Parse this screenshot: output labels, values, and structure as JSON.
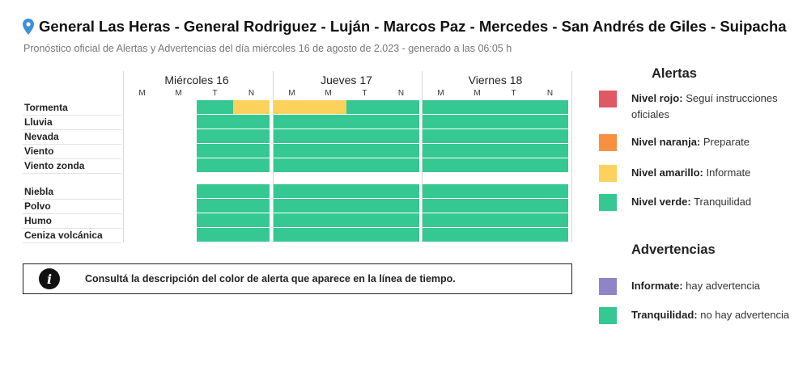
{
  "header": {
    "title": "General Las Heras - General Rodriguez - Luján - Marcos Paz - Mercedes - San Andrés de Giles - Suipacha",
    "subtitle": "Pronóstico oficial de Alertas y Advertencias del día miércoles 16 de agosto de 2.023 - generado a las 06:05 h"
  },
  "colors": {
    "verde": "#36c892",
    "amarillo": "#fcd25c",
    "naranja": "#f59140",
    "rojo": "#e15865",
    "violeta": "#8c86c6",
    "empty": "#ffffff"
  },
  "days": [
    {
      "label": "Miércoles 16",
      "periods": [
        "M",
        "M",
        "T",
        "N"
      ]
    },
    {
      "label": "Jueves 17",
      "periods": [
        "M",
        "M",
        "T",
        "N"
      ]
    },
    {
      "label": "Viernes 18",
      "periods": [
        "M",
        "M",
        "T",
        "N"
      ]
    }
  ],
  "rows": [
    {
      "label": "Tormenta",
      "levels": [
        "none",
        "none",
        "verde",
        "amarillo",
        "amarillo",
        "amarillo",
        "verde",
        "verde",
        "verde",
        "verde",
        "verde",
        "verde"
      ]
    },
    {
      "label": "Lluvia",
      "levels": [
        "none",
        "none",
        "verde",
        "verde",
        "verde",
        "verde",
        "verde",
        "verde",
        "verde",
        "verde",
        "verde",
        "verde"
      ]
    },
    {
      "label": "Nevada",
      "levels": [
        "none",
        "none",
        "verde",
        "verde",
        "verde",
        "verde",
        "verde",
        "verde",
        "verde",
        "verde",
        "verde",
        "verde"
      ]
    },
    {
      "label": "Viento",
      "levels": [
        "none",
        "none",
        "verde",
        "verde",
        "verde",
        "verde",
        "verde",
        "verde",
        "verde",
        "verde",
        "verde",
        "verde"
      ]
    },
    {
      "label": "Viento zonda",
      "levels": [
        "none",
        "none",
        "verde",
        "verde",
        "verde",
        "verde",
        "verde",
        "verde",
        "verde",
        "verde",
        "verde",
        "verde"
      ]
    },
    {
      "label": "Niebla",
      "levels": [
        "none",
        "none",
        "verde",
        "verde",
        "verde",
        "verde",
        "verde",
        "verde",
        "verde",
        "verde",
        "verde",
        "verde"
      ]
    },
    {
      "label": "Polvo",
      "levels": [
        "none",
        "none",
        "verde",
        "verde",
        "verde",
        "verde",
        "verde",
        "verde",
        "verde",
        "verde",
        "verde",
        "verde"
      ]
    },
    {
      "label": "Humo",
      "levels": [
        "none",
        "none",
        "verde",
        "verde",
        "verde",
        "verde",
        "verde",
        "verde",
        "verde",
        "verde",
        "verde",
        "verde"
      ]
    },
    {
      "label": "Ceniza volcánica",
      "levels": [
        "none",
        "none",
        "verde",
        "verde",
        "verde",
        "verde",
        "verde",
        "verde",
        "verde",
        "verde",
        "verde",
        "verde"
      ]
    }
  ],
  "info": {
    "icon": "info-icon",
    "icon_glyph": "i",
    "text": "Consultá la descripción del color de alerta que aparece en la línea de tiempo."
  },
  "legend": {
    "alertas_title": "Alertas",
    "alertas": [
      {
        "key": "rojo",
        "name": "Nivel rojo:",
        "desc": "Seguí instrucciones oficiales"
      },
      {
        "key": "naranja",
        "name": "Nivel naranja:",
        "desc": "Preparate"
      },
      {
        "key": "amarillo",
        "name": "Nivel amarillo:",
        "desc": "Informate"
      },
      {
        "key": "verde",
        "name": "Nivel verde:",
        "desc": "Tranquilidad"
      }
    ],
    "advertencias_title": "Advertencias",
    "advertencias": [
      {
        "key": "violeta",
        "name": "Informate:",
        "desc": "hay advertencia"
      },
      {
        "key": "verde",
        "name": "Tranquilidad:",
        "desc": "no hay advertencia"
      }
    ]
  }
}
